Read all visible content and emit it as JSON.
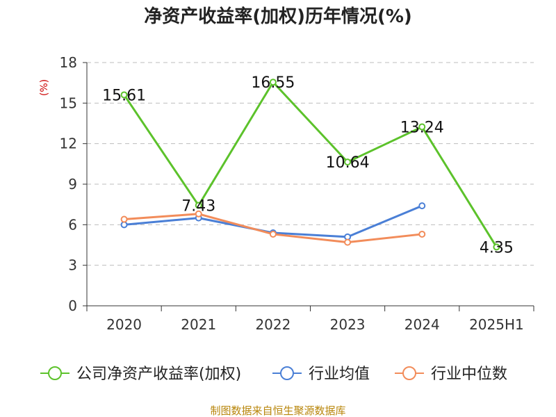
{
  "title": "净资产收益率(加权)历年情况(%)",
  "source": "制图数据来自恒生聚源数据库",
  "chart_data": {
    "type": "line",
    "unit_label": "(%)",
    "categories": [
      "2020",
      "2021",
      "2022",
      "2023",
      "2024",
      "2025H1"
    ],
    "ylim": [
      0,
      18
    ],
    "yticks": [
      0,
      3,
      6,
      9,
      12,
      15,
      18
    ],
    "grid": true,
    "legend_position": "bottom",
    "series": [
      {
        "name": "公司净资产收益率(加权)",
        "color": "#5cc22b",
        "values": [
          15.61,
          7.43,
          16.55,
          10.64,
          13.24,
          4.35
        ],
        "labels": [
          "15.61",
          "7.43",
          "16.55",
          "10.64",
          "13.24",
          "4.35"
        ]
      },
      {
        "name": "行业均值",
        "color": "#4a7fd6",
        "values": [
          6.0,
          6.5,
          5.4,
          5.1,
          7.4,
          null
        ]
      },
      {
        "name": "行业中位数",
        "color": "#f28c5a",
        "values": [
          6.4,
          6.8,
          5.3,
          4.7,
          5.3,
          null
        ]
      }
    ]
  }
}
